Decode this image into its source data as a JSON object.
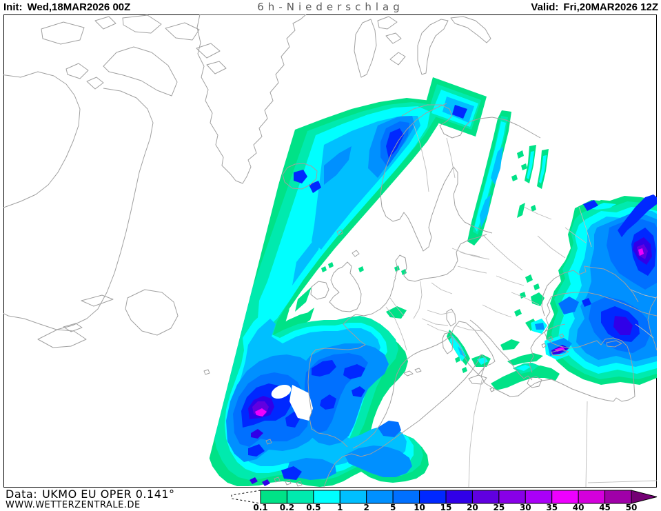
{
  "header": {
    "init_label": "Init:",
    "init_value": "Wed,18MAR2026 00Z",
    "title": "6h-Niederschlag",
    "valid_label": "Valid:",
    "valid_value": "Fri,20MAR2026 12Z"
  },
  "footer": {
    "data_label": "Data:",
    "data_value": "UKMO EU OPER 0.141°",
    "website": "WWW.WETTERZENTRALE.DE"
  },
  "colorbar": {
    "labels": [
      "0.1",
      "0.2",
      "0.5",
      "1",
      "2",
      "5",
      "10",
      "15",
      "20",
      "25",
      "30",
      "35",
      "40",
      "45",
      "50"
    ],
    "colors": [
      "#00e287",
      "#00eaae",
      "#00ffff",
      "#00bfff",
      "#0090ff",
      "#0070ff",
      "#0028ff",
      "#3000e8",
      "#6000e0",
      "#8800e8",
      "#aa00f8",
      "#ee00ff",
      "#d400dc",
      "#a000a8"
    ],
    "overflow_color": "#740074"
  },
  "map": {
    "coast_color": "#a0a0a0",
    "border_color": "#bcbcbc",
    "frame_color": "#000000",
    "title_color": "#5a5a5a"
  }
}
